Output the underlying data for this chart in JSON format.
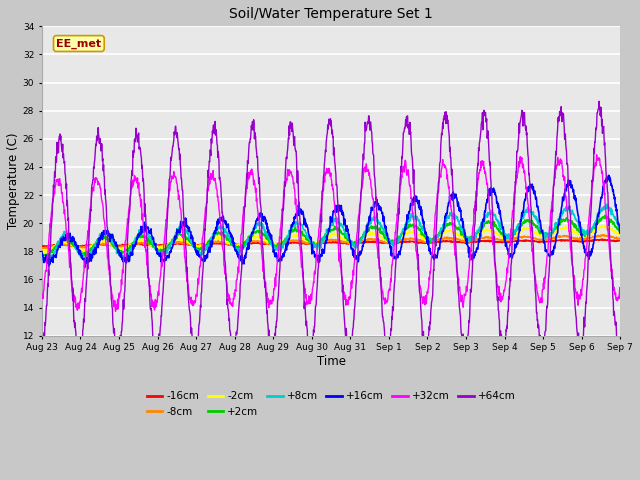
{
  "title": "Soil/Water Temperature Set 1",
  "xlabel": "Time",
  "ylabel": "Temperature (C)",
  "ylim": [
    12,
    34
  ],
  "yticks": [
    12,
    14,
    16,
    18,
    20,
    22,
    24,
    26,
    28,
    30,
    32,
    34
  ],
  "annotation": "EE_met",
  "series_labels": [
    "-16cm",
    "-8cm",
    "-2cm",
    "+2cm",
    "+8cm",
    "+16cm",
    "+32cm",
    "+64cm"
  ],
  "series_colors": [
    "#ff0000",
    "#ff8800",
    "#ffff00",
    "#00cc00",
    "#00cccc",
    "#0000ff",
    "#ff00ff",
    "#9900cc"
  ],
  "date_labels": [
    "Aug 23",
    "Aug 24",
    "Aug 25",
    "Aug 26",
    "Aug 27",
    "Aug 28",
    "Aug 29",
    "Aug 30",
    "Aug 31",
    "Sep 1",
    "Sep 2",
    "Sep 3",
    "Sep 4",
    "Sep 5",
    "Sep 6",
    "Sep 7"
  ],
  "n_days": 15,
  "n_points": 1500
}
